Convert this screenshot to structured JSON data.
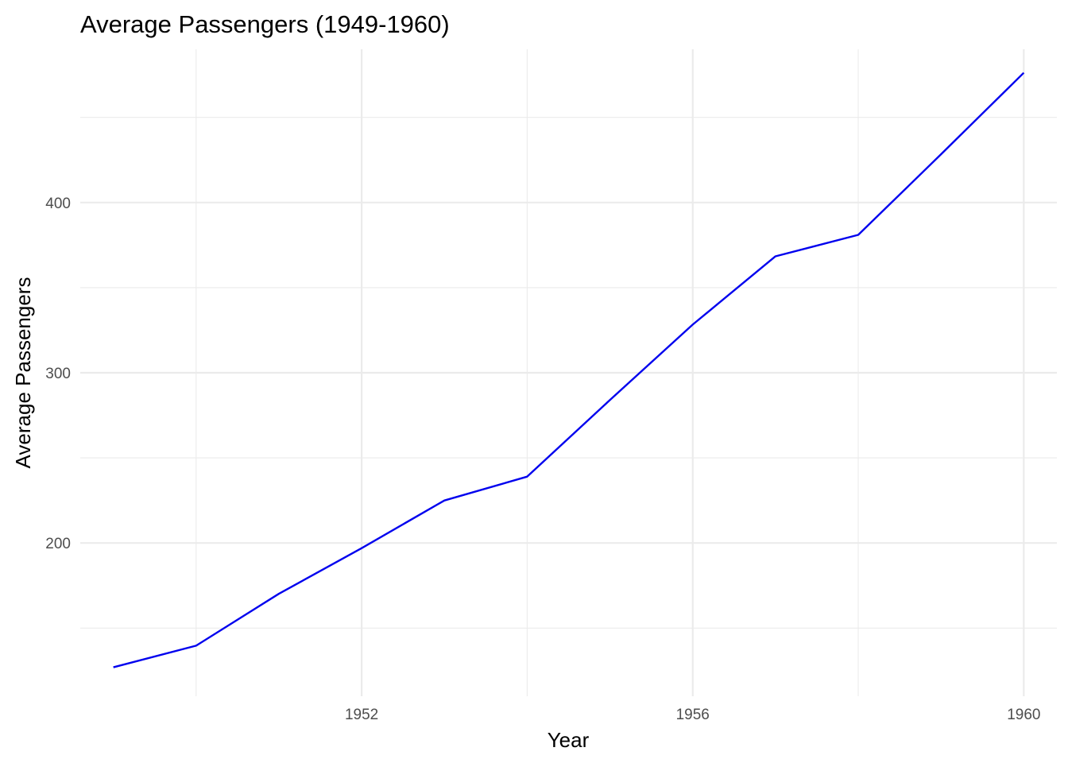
{
  "chart_data": {
    "type": "line",
    "title": "Average Passengers (1949-1960)",
    "xlabel": "Year",
    "ylabel": "Average Passengers",
    "x": [
      1949,
      1950,
      1951,
      1952,
      1953,
      1954,
      1955,
      1956,
      1957,
      1958,
      1959,
      1960
    ],
    "series": [
      {
        "values": [
          127.0,
          139.7,
          170.2,
          197.0,
          225.0,
          239.0,
          284.0,
          328.3,
          368.4,
          381.0,
          428.3,
          476.2
        ],
        "color": "#0000ee"
      }
    ],
    "xlim": [
      1948.6,
      1960.4
    ],
    "ylim": [
      110,
      490
    ],
    "x_major_ticks": [
      1952,
      1956,
      1960
    ],
    "x_minor_ticks": [
      1950,
      1954,
      1958
    ],
    "x_tick_labels": [
      "1952",
      "1956",
      "1960"
    ],
    "y_major_ticks": [
      200,
      300,
      400
    ],
    "y_minor_ticks": [
      150,
      250,
      350,
      450
    ],
    "y_tick_labels": [
      "200",
      "300",
      "400"
    ],
    "grid": true,
    "legend": "none"
  }
}
